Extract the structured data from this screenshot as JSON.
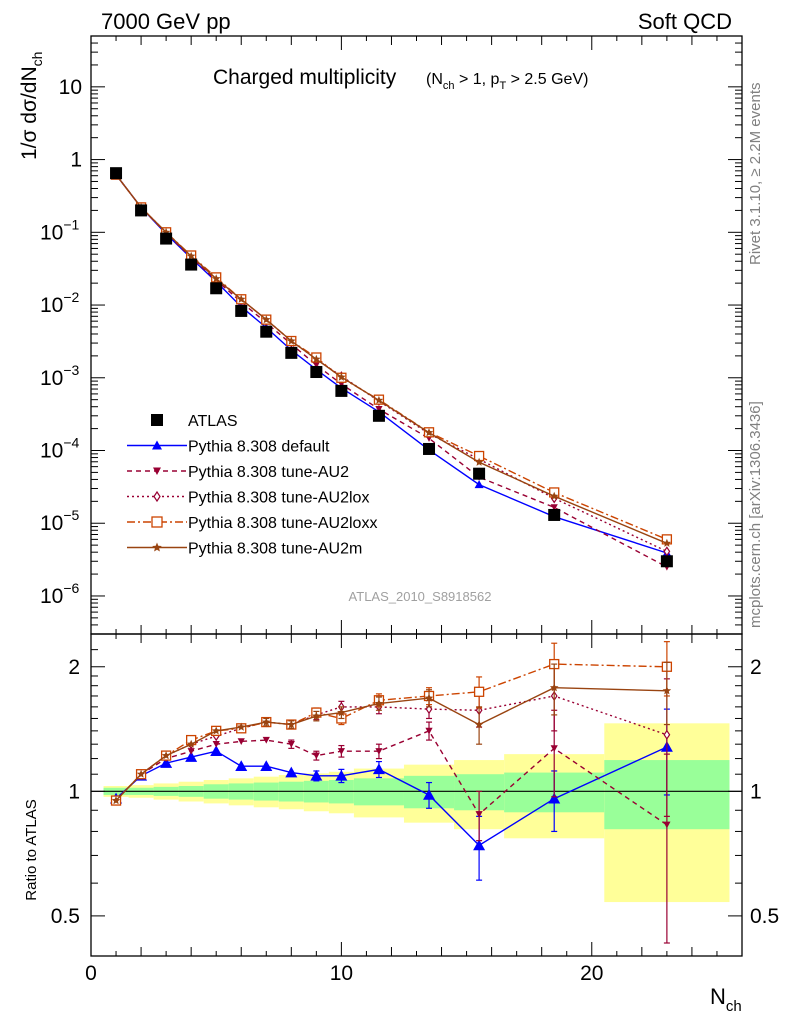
{
  "header": {
    "left": "7000 GeV pp",
    "right": "Soft QCD"
  },
  "side_labels": {
    "top": "Rivet 3.1.10, ≥ 2.2M events",
    "bottom": "mcplots.cern.ch [arXiv:1306.3436]"
  },
  "analysis_id": "ATLAS_2010_S8918562",
  "main_title": {
    "text": "Charged multiplicity",
    "sub": "(N_ch > 1, p_T > 2.5 GeV)"
  },
  "chart_data": [
    {
      "type": "line",
      "panel": "main",
      "ylabel": "1/σ dσ/dN_ch",
      "yscale": "log",
      "xlim": [
        0,
        26
      ],
      "ylim": [
        3e-07,
        50
      ],
      "x": [
        1,
        2,
        3,
        4,
        5,
        6,
        7,
        8,
        9,
        10,
        11.5,
        13.5,
        15.5,
        18.5,
        23
      ],
      "series": [
        {
          "name": "ATLAS",
          "color": "#000000",
          "marker": "square-filled",
          "values": [
            0.65,
            0.2,
            0.082,
            0.036,
            0.017,
            0.0083,
            0.0043,
            0.0022,
            0.0012,
            0.00066,
            0.0003,
            0.000105,
            4.8e-05,
            1.3e-05,
            3e-06
          ]
        },
        {
          "name": "Pythia 8.308 default",
          "color": "#0000ff",
          "marker": "triangle-up",
          "dash": "",
          "values": [
            0.62,
            0.22,
            0.095,
            0.044,
            0.021,
            0.0095,
            0.0049,
            0.0024,
            0.0013,
            0.00072,
            0.00034,
            0.000102,
            3.4e-05,
            1.23e-05,
            3.9e-06
          ]
        },
        {
          "name": "Pythia 8.308 tune-AU2",
          "color": "#990033",
          "marker": "triangle-down",
          "dash": "5,4",
          "values": [
            0.62,
            0.22,
            0.097,
            0.045,
            0.022,
            0.011,
            0.0057,
            0.0029,
            0.0015,
            0.00082,
            0.00037,
            0.000147,
            4.3e-05,
            1.65e-05,
            2.5e-06
          ]
        },
        {
          "name": "Pythia 8.308 tune-AU2lox",
          "color": "#990033",
          "marker": "diamond-open",
          "dash": "2,3",
          "values": [
            0.62,
            0.22,
            0.1,
            0.047,
            0.023,
            0.012,
            0.0063,
            0.0032,
            0.0018,
            0.00105,
            0.00048,
            0.00017,
            7.6e-05,
            2.2e-05,
            4.1e-06
          ]
        },
        {
          "name": "Pythia 8.308 tune-AU2loxx",
          "color": "#cc4400",
          "marker": "square-open",
          "dash": "8,3,2,3",
          "values": [
            0.62,
            0.22,
            0.1,
            0.048,
            0.024,
            0.012,
            0.0063,
            0.0032,
            0.0019,
            0.001,
            0.0005,
            0.000178,
            8.4e-05,
            2.65e-05,
            6e-06
          ]
        },
        {
          "name": "Pythia 8.308 tune-AU2m",
          "color": "#994411",
          "marker": "star",
          "dash": "",
          "values": [
            0.62,
            0.22,
            0.1,
            0.047,
            0.023,
            0.012,
            0.0063,
            0.0032,
            0.0018,
            0.00102,
            0.00049,
            0.000176,
            6.9e-05,
            2.35e-05,
            5.3e-06
          ]
        }
      ],
      "yticks": [
        {
          "value": 1e-06,
          "base": "10",
          "exp": "−6"
        },
        {
          "value": 1e-05,
          "base": "10",
          "exp": "−5"
        },
        {
          "value": 0.0001,
          "base": "10",
          "exp": "−4"
        },
        {
          "value": 0.001,
          "base": "10",
          "exp": "−3"
        },
        {
          "value": 0.01,
          "base": "10",
          "exp": "−2"
        },
        {
          "value": 0.1,
          "base": "10",
          "exp": "−1"
        },
        {
          "value": 1,
          "base": "1",
          "exp": ""
        },
        {
          "value": 10,
          "base": "10",
          "exp": ""
        }
      ],
      "legend_position": "lower-left"
    },
    {
      "type": "line",
      "panel": "ratio",
      "xlabel": "N_ch",
      "ylabel": "Ratio to ATLAS",
      "yscale": "log",
      "xlim": [
        0,
        26
      ],
      "ylim": [
        0.4,
        2.4
      ],
      "xticks": [
        0,
        10,
        20
      ],
      "yticks": [
        0.5,
        1,
        2
      ],
      "x": [
        1,
        2,
        3,
        4,
        5,
        6,
        7,
        8,
        9,
        10,
        11.5,
        13.5,
        15.5,
        18.5,
        23
      ],
      "bin_edges": [
        0.5,
        1.5,
        2.5,
        3.5,
        4.5,
        5.5,
        6.5,
        7.5,
        8.5,
        9.5,
        10.5,
        12.5,
        14.5,
        16.5,
        20.5,
        25.5
      ],
      "band_inner": [
        0.02,
        0.02,
        0.025,
        0.03,
        0.04,
        0.045,
        0.05,
        0.055,
        0.06,
        0.065,
        0.075,
        0.09,
        0.1,
        0.11,
        0.19
      ],
      "band_outer": [
        0.03,
        0.035,
        0.045,
        0.055,
        0.065,
        0.075,
        0.085,
        0.095,
        0.105,
        0.115,
        0.135,
        0.16,
        0.19,
        0.23,
        0.46
      ],
      "series": [
        {
          "name": "Pythia 8.308 default",
          "values": [
            0.96,
            1.09,
            1.17,
            1.21,
            1.25,
            1.15,
            1.15,
            1.11,
            1.09,
            1.09,
            1.13,
            0.98,
            0.74,
            0.96,
            1.28
          ],
          "errors": [
            0.01,
            0.01,
            0.01,
            0.02,
            0.02,
            0.02,
            0.02,
            0.02,
            0.03,
            0.04,
            0.05,
            0.07,
            0.13,
            0.16,
            0.3
          ]
        },
        {
          "name": "Pythia 8.308 tune-AU2",
          "values": [
            0.95,
            1.1,
            1.2,
            1.25,
            1.3,
            1.32,
            1.33,
            1.3,
            1.22,
            1.25,
            1.25,
            1.4,
            0.88,
            1.27,
            0.83
          ],
          "errors": [
            0.01,
            0.01,
            0.01,
            0.02,
            0.02,
            0.02,
            0.02,
            0.03,
            0.03,
            0.04,
            0.05,
            0.07,
            0.12,
            0.3,
            0.4
          ]
        },
        {
          "name": "Pythia 8.308 tune-AU2lox",
          "values": [
            0.95,
            1.1,
            1.22,
            1.3,
            1.36,
            1.42,
            1.47,
            1.45,
            1.53,
            1.6,
            1.6,
            1.58,
            1.57,
            1.7,
            1.37
          ],
          "errors": [
            0.01,
            0.01,
            0.01,
            0.02,
            0.02,
            0.02,
            0.03,
            0.03,
            0.04,
            0.05,
            0.06,
            0.08,
            0.14,
            0.3,
            0.5
          ]
        },
        {
          "name": "Pythia 8.308 tune-AU2loxx",
          "values": [
            0.95,
            1.1,
            1.22,
            1.33,
            1.4,
            1.42,
            1.47,
            1.45,
            1.55,
            1.5,
            1.66,
            1.7,
            1.74,
            2.03,
            2.0
          ],
          "errors": [
            0.01,
            0.01,
            0.01,
            0.02,
            0.02,
            0.02,
            0.03,
            0.03,
            0.04,
            0.05,
            0.06,
            0.08,
            0.15,
            0.25,
            0.3
          ]
        },
        {
          "name": "Pythia 8.308 tune-AU2m",
          "values": [
            0.95,
            1.1,
            1.22,
            1.3,
            1.4,
            1.43,
            1.47,
            1.45,
            1.52,
            1.55,
            1.63,
            1.68,
            1.45,
            1.78,
            1.75
          ],
          "errors": [
            0.01,
            0.01,
            0.01,
            0.02,
            0.02,
            0.02,
            0.03,
            0.03,
            0.04,
            0.05,
            0.06,
            0.08,
            0.15,
            0.25,
            0.3
          ]
        }
      ]
    }
  ],
  "colors": {
    "atlas": "#000000",
    "default": "#0000ff",
    "au2": "#990033",
    "au2lox": "#990033",
    "au2loxx": "#cc4400",
    "au2m": "#994411",
    "band_inner": "#99ff99",
    "band_outer": "#ffff99"
  }
}
